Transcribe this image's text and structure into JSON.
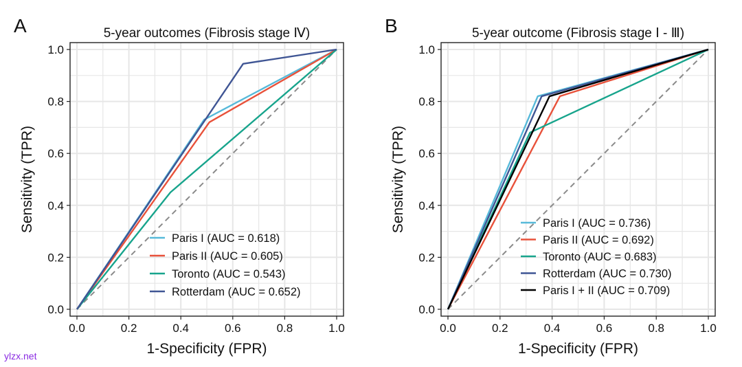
{
  "watermark": "ylzx.net",
  "chart_data": [
    {
      "type": "line",
      "panel_label": "A",
      "title": "5-year outcomes (Fibrosis stage Ⅳ)",
      "xlabel": "1-Specificity (FPR)",
      "ylabel": "Sensitivity (TPR)",
      "xlim": [
        0,
        1
      ],
      "ylim": [
        0,
        1
      ],
      "xticks": [
        "0.0",
        "0.2",
        "0.4",
        "0.6",
        "0.8",
        "1.0"
      ],
      "yticks": [
        "0.0",
        "0.2",
        "0.4",
        "0.6",
        "0.8",
        "1.0"
      ],
      "grid": true,
      "legend_position": "bottom-right",
      "diagonal": {
        "x": [
          0,
          1
        ],
        "y": [
          0,
          1
        ],
        "style": "dashed",
        "color": "#8a8a8a"
      },
      "series": [
        {
          "name": "Paris I",
          "label": "Paris I (AUC = 0.618)",
          "color": "#56b9d9",
          "x": [
            0,
            0.49,
            1
          ],
          "y": [
            0,
            0.73,
            1
          ]
        },
        {
          "name": "Paris II",
          "label": "Paris II (AUC = 0.605)",
          "color": "#e8513a",
          "x": [
            0,
            0.51,
            1
          ],
          "y": [
            0,
            0.72,
            1
          ]
        },
        {
          "name": "Toronto",
          "label": "Toronto (AUC = 0.543)",
          "color": "#17a48c",
          "x": [
            0,
            0.36,
            1
          ],
          "y": [
            0,
            0.45,
            1
          ]
        },
        {
          "name": "Rotterdam",
          "label": "Rotterdam (AUC = 0.652)",
          "color": "#3f5594",
          "x": [
            0,
            0.64,
            1
          ],
          "y": [
            0,
            0.945,
            1
          ]
        }
      ]
    },
    {
      "type": "line",
      "panel_label": "B",
      "title": "5-year outcome (Fibrosis stage Ⅰ - Ⅲ)",
      "xlabel": "1-Specificity (FPR)",
      "ylabel": "Sensitivity (TPR)",
      "xlim": [
        0,
        1
      ],
      "ylim": [
        0,
        1
      ],
      "xticks": [
        "0.0",
        "0.2",
        "0.4",
        "0.6",
        "0.8",
        "1.0"
      ],
      "yticks": [
        "0.0",
        "0.2",
        "0.4",
        "0.6",
        "0.8",
        "1.0"
      ],
      "grid": true,
      "legend_position": "bottom-right",
      "diagonal": {
        "x": [
          0,
          1
        ],
        "y": [
          0,
          1
        ],
        "style": "dashed",
        "color": "#8a8a8a"
      },
      "series": [
        {
          "name": "Paris I",
          "label": "Paris I (AUC = 0.736)",
          "color": "#56b9d9",
          "x": [
            0,
            0.345,
            1
          ],
          "y": [
            0,
            0.82,
            1
          ]
        },
        {
          "name": "Paris II",
          "label": "Paris II (AUC = 0.692)",
          "color": "#e8513a",
          "x": [
            0,
            0.43,
            1
          ],
          "y": [
            0,
            0.82,
            1
          ]
        },
        {
          "name": "Toronto",
          "label": "Toronto (AUC = 0.683)",
          "color": "#17a48c",
          "x": [
            0,
            0.315,
            1
          ],
          "y": [
            0,
            0.68,
            1
          ]
        },
        {
          "name": "Rotterdam",
          "label": "Rotterdam (AUC = 0.730)",
          "color": "#3f5594",
          "x": [
            0,
            0.36,
            1
          ],
          "y": [
            0,
            0.82,
            1
          ]
        },
        {
          "name": "Paris I + II",
          "label": "Paris I + II (AUC = 0.709)",
          "color": "#000000",
          "x": [
            0,
            0.39,
            1
          ],
          "y": [
            0,
            0.82,
            1
          ]
        }
      ]
    }
  ]
}
